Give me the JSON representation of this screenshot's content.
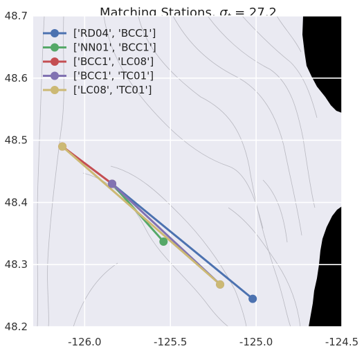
{
  "chart_data": {
    "type": "line",
    "title": "Matching Stations, ",
    "title_math_prefix": "σ",
    "title_math_subscript": "t",
    "title_math_suffix": " = 27.2",
    "xlabel": "",
    "ylabel": "",
    "xlim": [
      -126.3,
      -124.5
    ],
    "ylim": [
      48.2,
      48.7
    ],
    "xticks": [
      -126.0,
      -125.5,
      -125.0,
      -124.5
    ],
    "xtick_labels": [
      "-126.0",
      "-125.5",
      "-125.0",
      "-124.5"
    ],
    "yticks": [
      48.2,
      48.3,
      48.4,
      48.5,
      48.6,
      48.7
    ],
    "ytick_labels": [
      "48.2",
      "48.3",
      "48.4",
      "48.5",
      "48.6",
      "48.7"
    ],
    "grid": true,
    "legend_position": "top-left",
    "background_color": "#eaeaf2",
    "land_color": "#000000",
    "series": [
      {
        "name": "['RD04', 'BCC1']",
        "color": "#4c72b0",
        "points": [
          [
            -125.02,
            48.245
          ],
          [
            -125.84,
            48.43
          ]
        ]
      },
      {
        "name": "['NN01', 'BCC1']",
        "color": "#55a868",
        "points": [
          [
            -125.54,
            48.337
          ],
          [
            -125.84,
            48.43
          ]
        ]
      },
      {
        "name": "['BCC1', 'LC08']",
        "color": "#c44e52",
        "points": [
          [
            -125.84,
            48.43
          ],
          [
            -126.13,
            48.49
          ]
        ]
      },
      {
        "name": "['BCC1', 'TC01']",
        "color": "#8172b2",
        "points": [
          [
            -125.84,
            48.43
          ],
          [
            -125.21,
            48.268
          ]
        ]
      },
      {
        "name": "['LC08', 'TC01']",
        "color": "#ccb974",
        "points": [
          [
            -126.13,
            48.49
          ],
          [
            -125.21,
            48.268
          ]
        ]
      }
    ]
  }
}
